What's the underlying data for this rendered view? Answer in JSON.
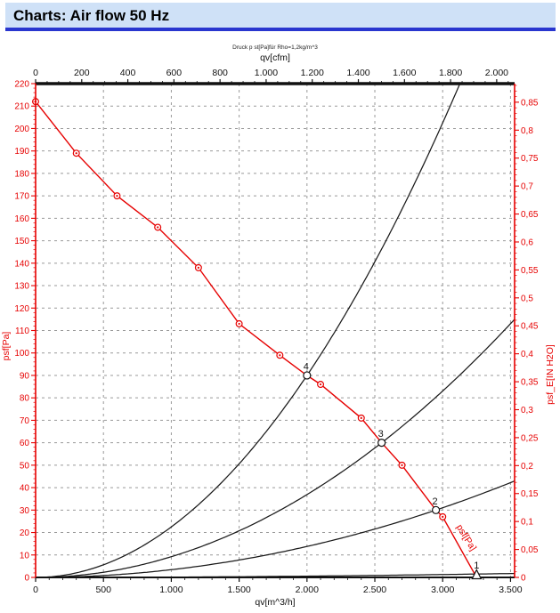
{
  "header": {
    "title": "Charts: Air flow 50 Hz",
    "bg_color": "#cfe1f7",
    "border_color": "#2936cf"
  },
  "chart_data": {
    "type": "line",
    "note": "Druck p st[Pa]für Rho=1,2kg/m^3",
    "axes": {
      "bottom": {
        "label": "qv[m^3/h]",
        "min": 0,
        "max": 3500,
        "plot_max": 3530,
        "major": 500,
        "minor": 100,
        "tick_labels": [
          "0",
          "500",
          "1.000",
          "1.500",
          "2.000",
          "2.500",
          "3.000",
          "3.500"
        ],
        "color": "#111111"
      },
      "top": {
        "label": "qv[cfm]",
        "min": 0,
        "max": 2000,
        "major": 200,
        "minor": 50,
        "cfm_per_m3h": 0.58858,
        "tick_labels": [
          "0",
          "200",
          "400",
          "600",
          "800",
          "1.000",
          "1.200",
          "1.400",
          "1.600",
          "1.800",
          "2.000"
        ],
        "color": "#111111"
      },
      "left": {
        "label": "psf[Pa]",
        "min": 0,
        "max": 220,
        "major": 10,
        "minor": 2,
        "tick_labels": [
          "0",
          "10",
          "20",
          "30",
          "40",
          "50",
          "60",
          "70",
          "80",
          "90",
          "100",
          "110",
          "120",
          "130",
          "140",
          "150",
          "160",
          "170",
          "180",
          "190",
          "200",
          "210",
          "220"
        ],
        "color": "#e60000"
      },
      "right": {
        "label": "psf_E[IN H2O]",
        "min": 0,
        "max": 0.85,
        "major": 0.05,
        "minor": 0.01,
        "pa_per_inh2o": 249.089,
        "tick_labels": [
          "0",
          "0,05",
          "0,1",
          "0,15",
          "0,2",
          "0,25",
          "0,3",
          "0,35",
          "0,4",
          "0,45",
          "0,5",
          "0,55",
          "0,6",
          "0,65",
          "0,7",
          "0,75",
          "0,8",
          "0,85"
        ],
        "color": "#e60000"
      }
    },
    "grid": {
      "color": "#999999",
      "x_step_m3h": 500,
      "y_step_pa": 10
    },
    "fan_curve": {
      "name": "psf[Pa]",
      "color": "#e60000",
      "end_label": "psf[Pa]",
      "points": [
        [
          0,
          212
        ],
        [
          300,
          189
        ],
        [
          600,
          170
        ],
        [
          900,
          156
        ],
        [
          1200,
          138
        ],
        [
          1500,
          113
        ],
        [
          1800,
          99
        ],
        [
          2000,
          90
        ],
        [
          2100,
          86
        ],
        [
          2400,
          71
        ],
        [
          2550,
          60
        ],
        [
          2700,
          50
        ],
        [
          2950,
          30
        ],
        [
          3000,
          27
        ],
        [
          3250,
          0
        ]
      ]
    },
    "operating_points": [
      {
        "label": "1",
        "qv": 3250,
        "psf": 0
      },
      {
        "label": "2",
        "qv": 2950,
        "psf": 30
      },
      {
        "label": "3",
        "qv": 2550,
        "psf": 60
      },
      {
        "label": "4",
        "qv": 2000,
        "psf": 90
      }
    ],
    "system_curves": {
      "color": "#1a1a1a",
      "shape": "parabola_through_operating_point"
    }
  }
}
